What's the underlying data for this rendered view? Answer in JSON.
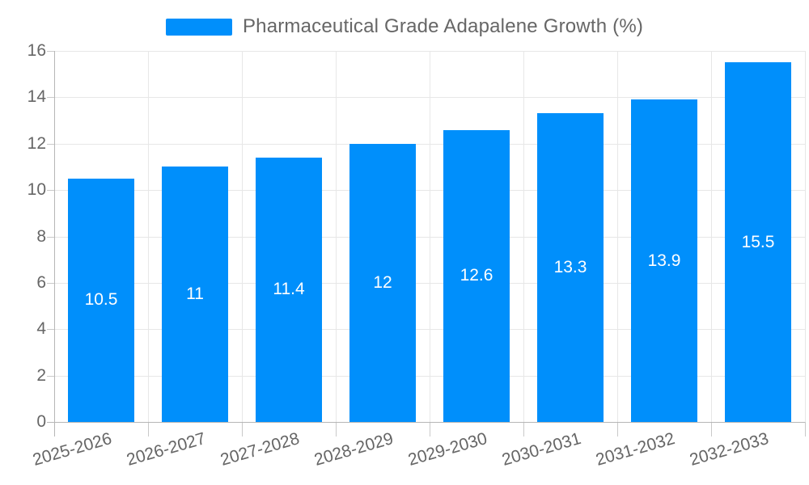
{
  "legend": {
    "label": "Pharmaceutical Grade Adapalene Growth (%)"
  },
  "chart_data": {
    "type": "bar",
    "title": "Pharmaceutical Grade Adapalene Growth (%)",
    "series": [
      {
        "name": "Pharmaceutical Grade Adapalene Growth (%)",
        "values": [
          10.5,
          11,
          11.4,
          12,
          12.6,
          13.3,
          13.9,
          15.5
        ]
      }
    ],
    "categories": [
      "2025-2026",
      "2026-2027",
      "2027-2028",
      "2028-2029",
      "2029-2030",
      "2030-2031",
      "2031-2032",
      "2032-2033"
    ],
    "value_labels": [
      "10.5",
      "11",
      "11.4",
      "12",
      "12.6",
      "13.3",
      "13.9",
      "15.5"
    ],
    "xlabel": "",
    "ylabel": "",
    "ylim": [
      0,
      16
    ],
    "ytick_step": 2,
    "ytick_labels": [
      "0",
      "2",
      "4",
      "6",
      "8",
      "10",
      "12",
      "14",
      "16"
    ],
    "grid": "both",
    "legend_position": "top",
    "colors": {
      "bar": "#008FFB",
      "grid": "#e7e7e7",
      "axis": "#b6b6b6",
      "tick": "#c9c9c9",
      "label_text": "#666666",
      "value_text": "#ffffff",
      "background": "#ffffff"
    }
  }
}
